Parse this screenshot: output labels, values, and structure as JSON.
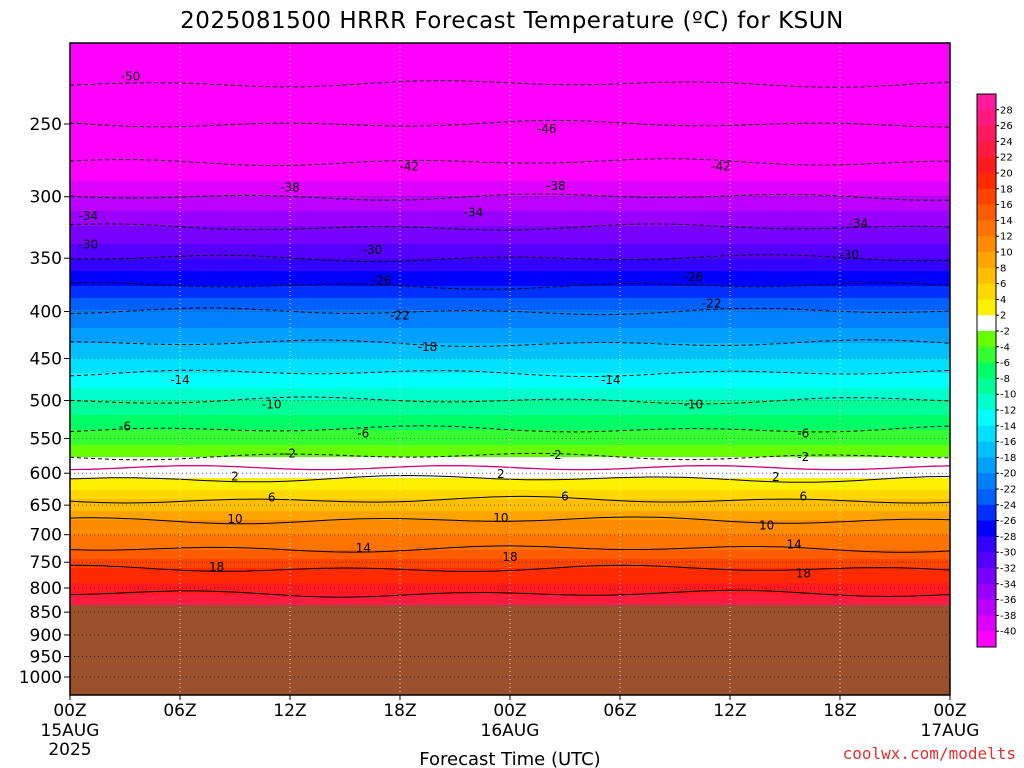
{
  "chart_data": {
    "type": "heatmap",
    "title": "2025081500 HRRR Forecast Temperature (ºC) for KSUN",
    "xlabel": "Forecast Time (UTC)",
    "ylabel": "",
    "y_ticks": [
      250,
      300,
      350,
      400,
      450,
      500,
      550,
      600,
      650,
      700,
      750,
      800,
      850,
      900,
      950,
      1000
    ],
    "y_range_hpa": [
      1050,
      200
    ],
    "x_ticks": [
      {
        "hour": 0,
        "label": "00Z",
        "sub1": "15AUG",
        "sub2": "2025"
      },
      {
        "hour": 6,
        "label": "06Z",
        "sub1": "",
        "sub2": ""
      },
      {
        "hour": 12,
        "label": "12Z",
        "sub1": "",
        "sub2": ""
      },
      {
        "hour": 18,
        "label": "18Z",
        "sub1": "",
        "sub2": ""
      },
      {
        "hour": 24,
        "label": "00Z",
        "sub1": "16AUG",
        "sub2": ""
      },
      {
        "hour": 30,
        "label": "06Z",
        "sub1": "",
        "sub2": ""
      },
      {
        "hour": 36,
        "label": "12Z",
        "sub1": "",
        "sub2": ""
      },
      {
        "hour": 42,
        "label": "18Z",
        "sub1": "",
        "sub2": ""
      },
      {
        "hour": 48,
        "label": "00Z",
        "sub1": "17AUG",
        "sub2": ""
      }
    ],
    "x_range_hours": [
      0,
      48
    ],
    "surface_pressure_hpa": 835,
    "vertical_grid": "dotted",
    "profile": [
      {
        "p": 220,
        "t": -51
      },
      {
        "p": 250,
        "t": -46
      },
      {
        "p": 300,
        "t": -38
      },
      {
        "p": 330,
        "t": -33
      },
      {
        "p": 350,
        "t": -30
      },
      {
        "p": 375,
        "t": -26
      },
      {
        "p": 400,
        "t": -22
      },
      {
        "p": 425,
        "t": -19
      },
      {
        "p": 450,
        "t": -16
      },
      {
        "p": 475,
        "t": -13
      },
      {
        "p": 500,
        "t": -10
      },
      {
        "p": 525,
        "t": -7
      },
      {
        "p": 550,
        "t": -5
      },
      {
        "p": 575,
        "t": -2
      },
      {
        "p": 600,
        "t": 1
      },
      {
        "p": 625,
        "t": 4
      },
      {
        "p": 650,
        "t": 7
      },
      {
        "p": 675,
        "t": 10
      },
      {
        "p": 700,
        "t": 12
      },
      {
        "p": 725,
        "t": 14
      },
      {
        "p": 750,
        "t": 17
      },
      {
        "p": 775,
        "t": 19
      },
      {
        "p": 800,
        "t": 21
      },
      {
        "p": 835,
        "t": 24
      }
    ],
    "contour_labels": [
      {
        "text": "-50",
        "hour": 3.3,
        "p": 222
      },
      {
        "text": "-46",
        "hour": 26.0,
        "p": 253
      },
      {
        "text": "-42",
        "hour": 18.5,
        "p": 278
      },
      {
        "text": "-42",
        "hour": 35.5,
        "p": 278
      },
      {
        "text": "-38",
        "hour": 12.0,
        "p": 293
      },
      {
        "text": "-38",
        "hour": 26.5,
        "p": 292
      },
      {
        "text": "-34",
        "hour": 1.0,
        "p": 315
      },
      {
        "text": "-34",
        "hour": 22.0,
        "p": 312
      },
      {
        "text": "-34",
        "hour": 43.0,
        "p": 321
      },
      {
        "text": "-30",
        "hour": 1.0,
        "p": 338
      },
      {
        "text": "-30",
        "hour": 16.5,
        "p": 343
      },
      {
        "text": "-30",
        "hour": 42.5,
        "p": 347
      },
      {
        "text": "-26",
        "hour": 17.0,
        "p": 370
      },
      {
        "text": "-26",
        "hour": 34.0,
        "p": 367
      },
      {
        "text": "-22",
        "hour": 18.0,
        "p": 404
      },
      {
        "text": "-22",
        "hour": 35.0,
        "p": 392
      },
      {
        "text": "-18",
        "hour": 19.5,
        "p": 437
      },
      {
        "text": "-14",
        "hour": 6.0,
        "p": 475
      },
      {
        "text": "-14",
        "hour": 29.5,
        "p": 475
      },
      {
        "text": "-10",
        "hour": 11.0,
        "p": 505
      },
      {
        "text": "-10",
        "hour": 34.0,
        "p": 505
      },
      {
        "text": "-6",
        "hour": 3.0,
        "p": 534
      },
      {
        "text": "-6",
        "hour": 16.0,
        "p": 543
      },
      {
        "text": "-6",
        "hour": 40.0,
        "p": 543
      },
      {
        "text": "-2",
        "hour": 12.0,
        "p": 571
      },
      {
        "text": "-2",
        "hour": 26.5,
        "p": 573
      },
      {
        "text": "-2",
        "hour": 40.0,
        "p": 576
      },
      {
        "text": "2",
        "hour": 9.0,
        "p": 605
      },
      {
        "text": "2",
        "hour": 23.5,
        "p": 601
      },
      {
        "text": "2",
        "hour": 38.5,
        "p": 606
      },
      {
        "text": "6",
        "hour": 11.0,
        "p": 638
      },
      {
        "text": "6",
        "hour": 27.0,
        "p": 636
      },
      {
        "text": "6",
        "hour": 40.0,
        "p": 636
      },
      {
        "text": "10",
        "hour": 9.0,
        "p": 673
      },
      {
        "text": "10",
        "hour": 23.5,
        "p": 671
      },
      {
        "text": "10",
        "hour": 38.0,
        "p": 684
      },
      {
        "text": "14",
        "hour": 16.0,
        "p": 724
      },
      {
        "text": "14",
        "hour": 39.5,
        "p": 717
      },
      {
        "text": "18",
        "hour": 8.0,
        "p": 759
      },
      {
        "text": "18",
        "hour": 24.0,
        "p": 740
      },
      {
        "text": "18",
        "hour": 40.0,
        "p": 771
      }
    ],
    "colorbar": {
      "ticks": [
        28,
        26,
        24,
        22,
        20,
        18,
        16,
        14,
        12,
        10,
        8,
        6,
        4,
        2,
        -2,
        -4,
        -6,
        -8,
        -10,
        -12,
        -14,
        -16,
        -18,
        -20,
        -22,
        -24,
        -26,
        -28,
        -30,
        -32,
        -34,
        -36,
        -38,
        -40
      ],
      "bins": [
        {
          "min": 28,
          "color": "#ff1aa0"
        },
        {
          "min": 26,
          "color": "#ff1a80"
        },
        {
          "min": 24,
          "color": "#ff1a60"
        },
        {
          "min": 22,
          "color": "#ff1a40"
        },
        {
          "min": 20,
          "color": "#ff1a20"
        },
        {
          "min": 18,
          "color": "#ff2a00"
        },
        {
          "min": 16,
          "color": "#ff4400"
        },
        {
          "min": 14,
          "color": "#ff5c00"
        },
        {
          "min": 12,
          "color": "#ff7400"
        },
        {
          "min": 10,
          "color": "#ff8c00"
        },
        {
          "min": 8,
          "color": "#ffa400"
        },
        {
          "min": 6,
          "color": "#ffbe00"
        },
        {
          "min": 4,
          "color": "#ffd800"
        },
        {
          "min": 2,
          "color": "#fff000"
        },
        {
          "min": -2,
          "color": "#ffffff"
        },
        {
          "min": -4,
          "color": "#66ff00"
        },
        {
          "min": -6,
          "color": "#33ff33"
        },
        {
          "min": -8,
          "color": "#00ff66"
        },
        {
          "min": -10,
          "color": "#00ff99"
        },
        {
          "min": -12,
          "color": "#00ffcc"
        },
        {
          "min": -14,
          "color": "#00ffff"
        },
        {
          "min": -16,
          "color": "#00e0ff"
        },
        {
          "min": -18,
          "color": "#00c0ff"
        },
        {
          "min": -20,
          "color": "#00a0ff"
        },
        {
          "min": -22,
          "color": "#0080ff"
        },
        {
          "min": -24,
          "color": "#0060ff"
        },
        {
          "min": -26,
          "color": "#0030ff"
        },
        {
          "min": -28,
          "color": "#0000ff"
        },
        {
          "min": -30,
          "color": "#3300ff"
        },
        {
          "min": -32,
          "color": "#5500ff"
        },
        {
          "min": -34,
          "color": "#7700ff"
        },
        {
          "min": -36,
          "color": "#9900ff"
        },
        {
          "min": -38,
          "color": "#bb00ff"
        },
        {
          "min": -40,
          "color": "#dd00ff"
        },
        {
          "min": -100,
          "color": "#ff00ff"
        }
      ]
    },
    "colors": {
      "terrain": "#9a4f2d",
      "zero_contour": "#d0007a",
      "credit": "#e03030"
    }
  },
  "credit": "coolwx.com/modelts"
}
